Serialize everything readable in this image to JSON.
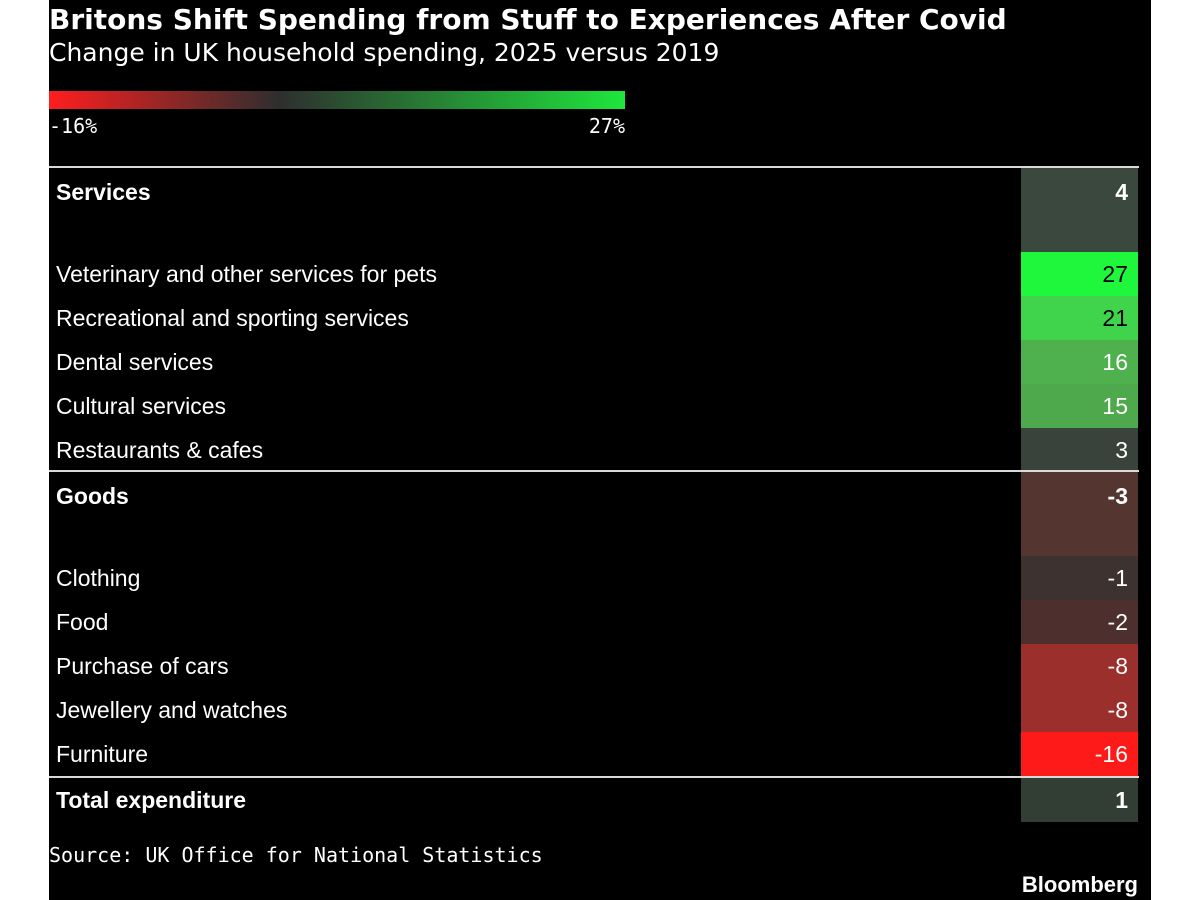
{
  "title": "Britons Shift Spending from Stuff to Experiences After Covid",
  "subtitle": "Change in UK household spending, 2025 versus 2019",
  "scale": {
    "min_label": "-16%",
    "max_label": "27%",
    "min_value": -16,
    "max_value": 27,
    "colors": [
      "#ff1e1e",
      "#2e2e2e",
      "#1ee63c"
    ]
  },
  "source": "Source: UK Office for National Statistics",
  "brand": "Bloomberg",
  "chart_data": {
    "type": "table",
    "value_range": [
      -16,
      27
    ],
    "groups": [
      {
        "name": "Services",
        "value": 4,
        "color": "#3b483d",
        "items": [
          {
            "label": "Veterinary and other services for pets",
            "value": 27,
            "color": "#1ff73d"
          },
          {
            "label": "Recreational and sporting services",
            "value": 21,
            "color": "#3fd44b"
          },
          {
            "label": "Dental services",
            "value": 16,
            "color": "#4fb04e"
          },
          {
            "label": "Cultural services",
            "value": 15,
            "color": "#4ea84c"
          },
          {
            "label": "Restaurants & cafes",
            "value": 3,
            "color": "#3a433b"
          }
        ]
      },
      {
        "name": "Goods",
        "value": -3,
        "color": "#553530",
        "items": [
          {
            "label": "Clothing",
            "value": -1,
            "color": "#3d3230"
          },
          {
            "label": "Food",
            "value": -2,
            "color": "#4d302e"
          },
          {
            "label": "Purchase of cars",
            "value": -8,
            "color": "#9b2f2b"
          },
          {
            "label": "Jewellery and watches",
            "value": -8,
            "color": "#9b2f2b"
          },
          {
            "label": "Furniture",
            "value": -16,
            "color": "#ff1a1a"
          }
        ]
      }
    ],
    "total": {
      "label": "Total expenditure",
      "value": 1,
      "color": "#323d34"
    }
  }
}
